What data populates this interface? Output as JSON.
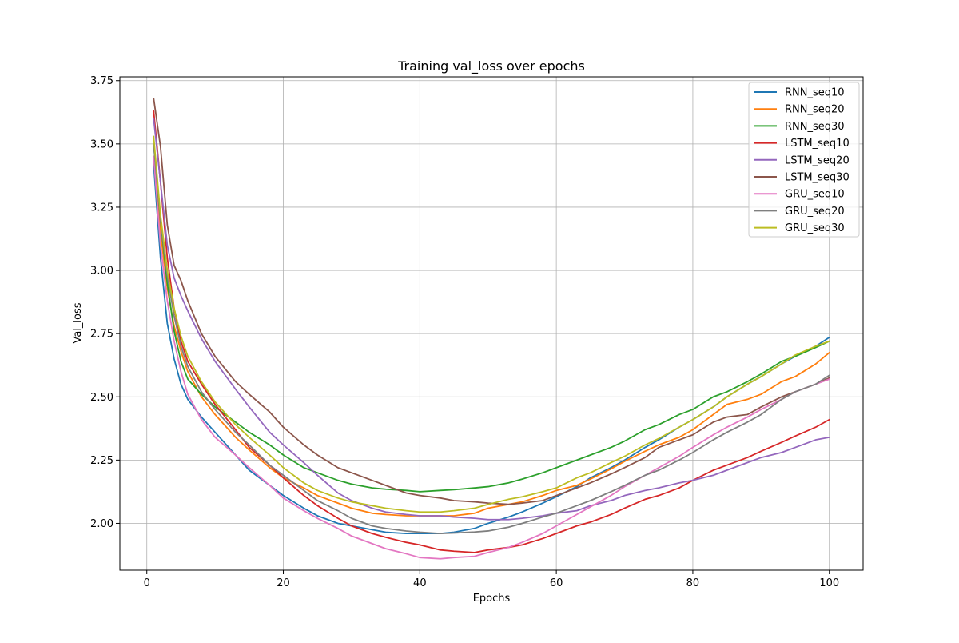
{
  "chart_data": {
    "type": "line",
    "title": "Training val_loss over epochs",
    "xlabel": "Epochs",
    "ylabel": "Val_loss",
    "xlim": [
      -3.95,
      104.95
    ],
    "ylim": [
      1.815,
      3.765
    ],
    "xticks": [
      0,
      20,
      40,
      60,
      80,
      100
    ],
    "yticks": [
      2.0,
      2.25,
      2.5,
      2.75,
      3.0,
      3.25,
      3.5,
      3.75
    ],
    "xtick_labels": [
      "0",
      "20",
      "40",
      "60",
      "80",
      "100"
    ],
    "ytick_labels": [
      "2.00",
      "2.25",
      "2.50",
      "2.75",
      "3.00",
      "3.25",
      "3.50",
      "3.75"
    ],
    "grid": true,
    "legend_position": "top-right",
    "x_key_epochs": [
      1,
      2,
      3,
      4,
      5,
      6,
      8,
      10,
      13,
      15,
      18,
      20,
      23,
      25,
      28,
      30,
      33,
      35,
      38,
      40,
      43,
      45,
      48,
      50,
      53,
      55,
      58,
      60,
      63,
      65,
      68,
      70,
      73,
      75,
      78,
      80,
      83,
      85,
      88,
      90,
      93,
      95,
      98,
      100
    ],
    "series": [
      {
        "name": "RNN_seq10",
        "color": "#1f77b4",
        "values": [
          3.42,
          3.05,
          2.79,
          2.65,
          2.55,
          2.49,
          2.42,
          2.36,
          2.27,
          2.21,
          2.15,
          2.11,
          2.06,
          2.03,
          2.0,
          1.99,
          1.975,
          1.965,
          1.96,
          1.96,
          1.96,
          1.965,
          1.98,
          2.0,
          2.025,
          2.045,
          2.08,
          2.105,
          2.145,
          2.18,
          2.22,
          2.25,
          2.3,
          2.33,
          2.38,
          2.41,
          2.46,
          2.5,
          2.55,
          2.58,
          2.63,
          2.66,
          2.7,
          2.735
        ]
      },
      {
        "name": "RNN_seq20",
        "color": "#ff7f0e",
        "values": [
          3.45,
          3.15,
          2.93,
          2.78,
          2.68,
          2.6,
          2.5,
          2.43,
          2.34,
          2.29,
          2.22,
          2.18,
          2.14,
          2.11,
          2.08,
          2.06,
          2.04,
          2.035,
          2.03,
          2.03,
          2.03,
          2.03,
          2.04,
          2.06,
          2.075,
          2.085,
          2.11,
          2.13,
          2.15,
          2.175,
          2.215,
          2.245,
          2.285,
          2.31,
          2.34,
          2.37,
          2.43,
          2.47,
          2.49,
          2.51,
          2.56,
          2.58,
          2.63,
          2.675
        ]
      },
      {
        "name": "RNN_seq30",
        "color": "#2ca02c",
        "values": [
          3.5,
          3.2,
          2.95,
          2.76,
          2.64,
          2.57,
          2.51,
          2.46,
          2.4,
          2.36,
          2.31,
          2.27,
          2.22,
          2.2,
          2.17,
          2.155,
          2.14,
          2.135,
          2.13,
          2.125,
          2.13,
          2.133,
          2.14,
          2.145,
          2.16,
          2.175,
          2.2,
          2.22,
          2.25,
          2.27,
          2.3,
          2.325,
          2.37,
          2.39,
          2.43,
          2.45,
          2.5,
          2.52,
          2.56,
          2.59,
          2.64,
          2.66,
          2.695,
          2.72
        ]
      },
      {
        "name": "LSTM_seq10",
        "color": "#d62728",
        "values": [
          3.63,
          3.35,
          3.05,
          2.85,
          2.72,
          2.64,
          2.55,
          2.47,
          2.37,
          2.3,
          2.23,
          2.18,
          2.11,
          2.07,
          2.02,
          1.99,
          1.96,
          1.945,
          1.925,
          1.915,
          1.895,
          1.89,
          1.885,
          1.895,
          1.905,
          1.915,
          1.94,
          1.96,
          1.99,
          2.005,
          2.035,
          2.06,
          2.095,
          2.11,
          2.14,
          2.17,
          2.21,
          2.23,
          2.26,
          2.285,
          2.32,
          2.345,
          2.38,
          2.41
        ]
      },
      {
        "name": "LSTM_seq20",
        "color": "#9467bd",
        "values": [
          3.6,
          3.35,
          3.1,
          2.97,
          2.9,
          2.84,
          2.73,
          2.64,
          2.53,
          2.46,
          2.36,
          2.31,
          2.24,
          2.19,
          2.12,
          2.09,
          2.06,
          2.045,
          2.035,
          2.03,
          2.03,
          2.025,
          2.02,
          2.015,
          2.015,
          2.02,
          2.03,
          2.04,
          2.05,
          2.07,
          2.09,
          2.11,
          2.13,
          2.14,
          2.16,
          2.17,
          2.19,
          2.21,
          2.24,
          2.26,
          2.28,
          2.3,
          2.33,
          2.34
        ]
      },
      {
        "name": "LSTM_seq30",
        "color": "#8c564b",
        "values": [
          3.68,
          3.49,
          3.18,
          3.02,
          2.96,
          2.88,
          2.75,
          2.66,
          2.56,
          2.51,
          2.44,
          2.38,
          2.31,
          2.27,
          2.22,
          2.2,
          2.17,
          2.15,
          2.12,
          2.11,
          2.1,
          2.09,
          2.085,
          2.08,
          2.075,
          2.08,
          2.09,
          2.11,
          2.14,
          2.16,
          2.195,
          2.22,
          2.26,
          2.3,
          2.33,
          2.35,
          2.4,
          2.42,
          2.43,
          2.46,
          2.5,
          2.52,
          2.55,
          2.575
        ]
      },
      {
        "name": "GRU_seq10",
        "color": "#e377c2",
        "values": [
          3.45,
          3.1,
          2.88,
          2.72,
          2.6,
          2.51,
          2.41,
          2.34,
          2.27,
          2.22,
          2.15,
          2.1,
          2.05,
          2.02,
          1.98,
          1.95,
          1.92,
          1.9,
          1.88,
          1.865,
          1.86,
          1.865,
          1.87,
          1.885,
          1.905,
          1.925,
          1.96,
          1.99,
          2.035,
          2.065,
          2.11,
          2.145,
          2.19,
          2.22,
          2.265,
          2.3,
          2.35,
          2.38,
          2.42,
          2.45,
          2.49,
          2.52,
          2.55,
          2.57
        ]
      },
      {
        "name": "GRU_seq20",
        "color": "#7f7f7f",
        "values": [
          3.5,
          3.2,
          2.98,
          2.82,
          2.7,
          2.62,
          2.52,
          2.45,
          2.36,
          2.31,
          2.23,
          2.19,
          2.13,
          2.09,
          2.05,
          2.02,
          1.99,
          1.98,
          1.97,
          1.965,
          1.96,
          1.962,
          1.966,
          1.97,
          1.985,
          2.0,
          2.025,
          2.04,
          2.07,
          2.09,
          2.125,
          2.15,
          2.19,
          2.21,
          2.25,
          2.28,
          2.33,
          2.36,
          2.4,
          2.43,
          2.49,
          2.52,
          2.55,
          2.585
        ]
      },
      {
        "name": "GRU_seq30",
        "color": "#bcbd22",
        "values": [
          3.53,
          3.22,
          3.0,
          2.85,
          2.74,
          2.66,
          2.56,
          2.48,
          2.39,
          2.34,
          2.27,
          2.22,
          2.16,
          2.13,
          2.1,
          2.085,
          2.07,
          2.06,
          2.05,
          2.045,
          2.045,
          2.05,
          2.06,
          2.075,
          2.095,
          2.105,
          2.125,
          2.14,
          2.18,
          2.2,
          2.24,
          2.265,
          2.31,
          2.335,
          2.38,
          2.41,
          2.46,
          2.5,
          2.55,
          2.58,
          2.63,
          2.665,
          2.7,
          2.72
        ]
      }
    ]
  }
}
